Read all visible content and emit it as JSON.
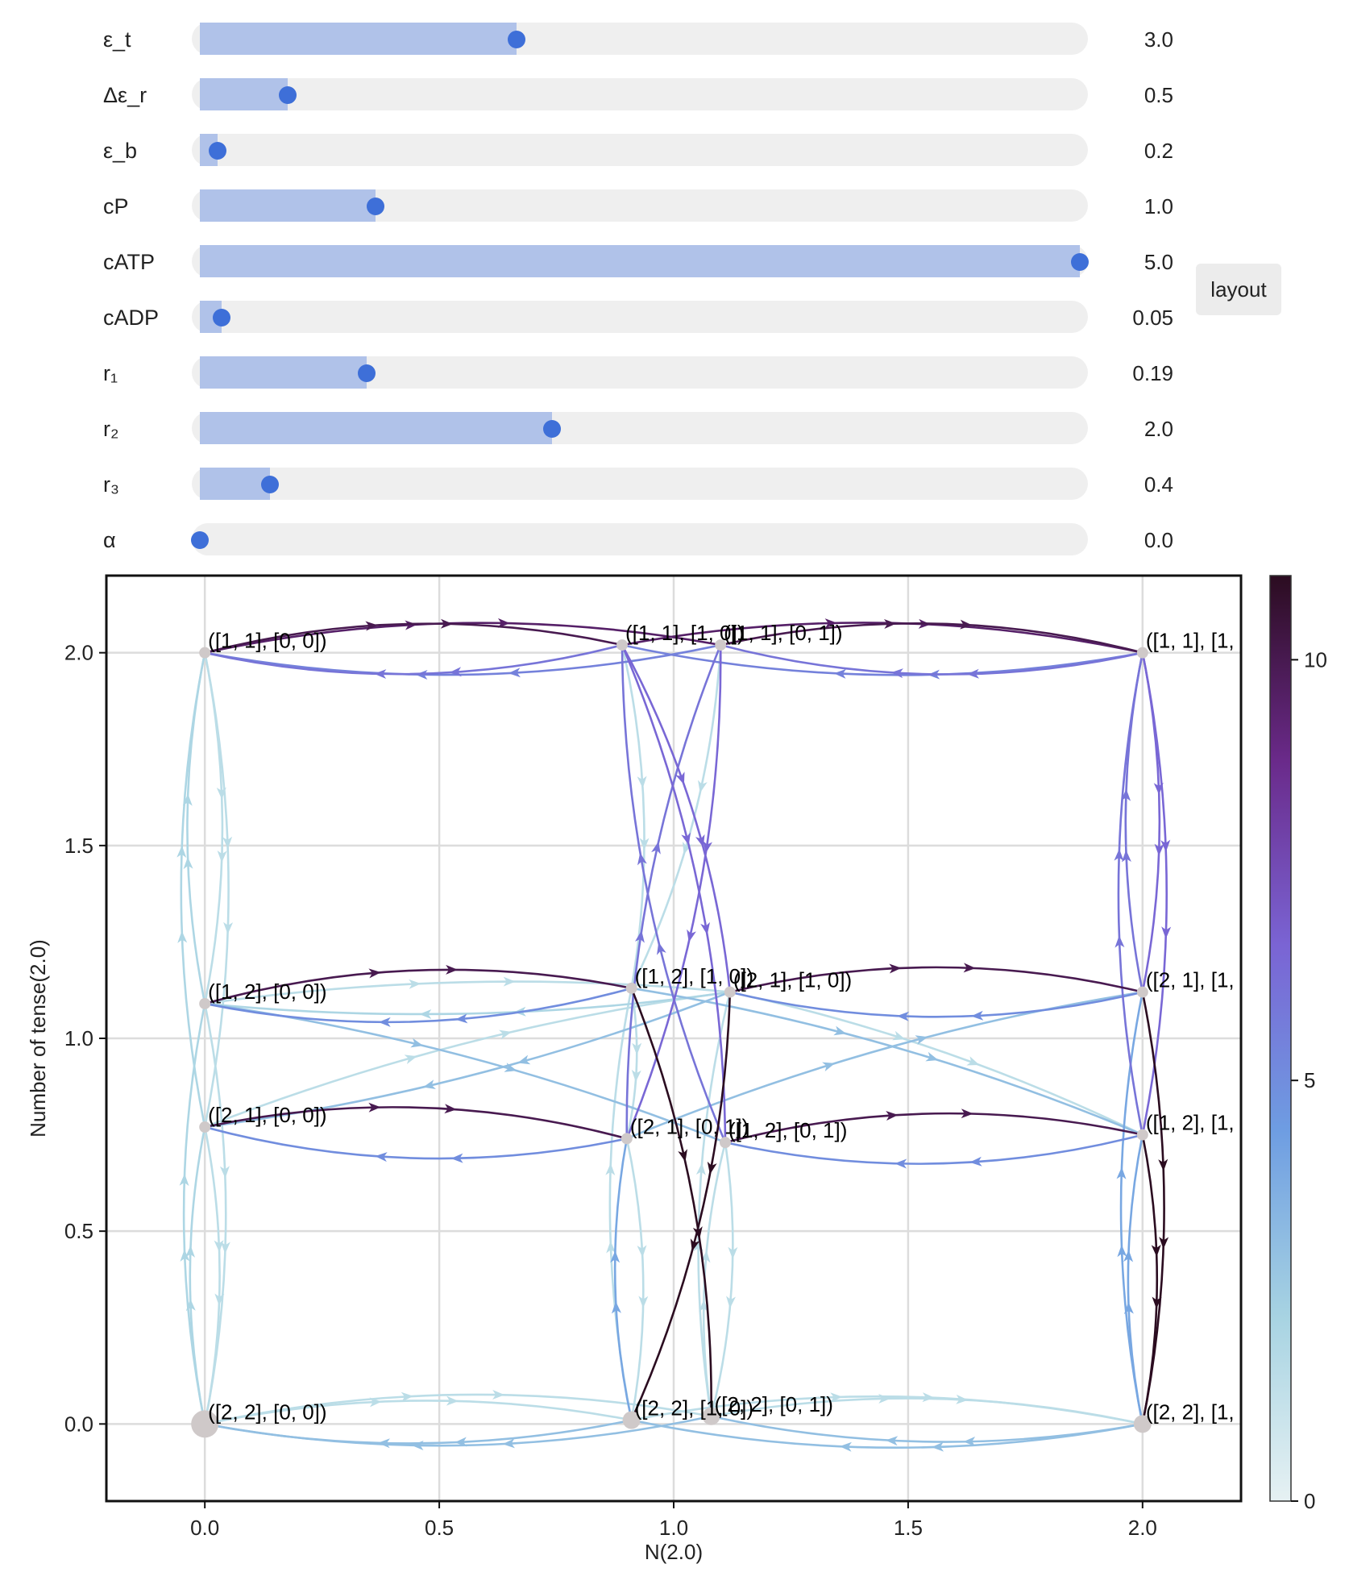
{
  "sliders": [
    {
      "label": "ε_t",
      "value": "3.0",
      "fraction": 0.36
    },
    {
      "label": "Δε_r",
      "value": "0.5",
      "fraction": 0.1
    },
    {
      "label": "ε_b",
      "value": "0.2",
      "fraction": 0.02
    },
    {
      "label": "cP",
      "value": "1.0",
      "fraction": 0.2
    },
    {
      "label": "cATP",
      "value": "5.0",
      "fraction": 1.0
    },
    {
      "label": "cADP",
      "value": "0.05",
      "fraction": 0.025
    },
    {
      "label": "r₁",
      "value": "0.19",
      "fraction": 0.19
    },
    {
      "label": "r₂",
      "value": "2.0",
      "fraction": 0.4
    },
    {
      "label": "r₃",
      "value": "0.4",
      "fraction": 0.08
    },
    {
      "label": "α",
      "value": "0.0",
      "fraction": 0.0
    }
  ],
  "layout_button": "layout",
  "chart_data": {
    "type": "network",
    "xlabel": "N(2.0)",
    "ylabel": "Number of tense(2.0)",
    "xlim": [
      -0.21,
      2.21
    ],
    "ylim": [
      -0.2,
      2.2
    ],
    "xticks": [
      "0.0",
      "0.5",
      "1.0",
      "1.5",
      "2.0"
    ],
    "yticks": [
      "0.0",
      "0.5",
      "1.0",
      "1.5",
      "2.0"
    ],
    "grid": true,
    "colorbar": {
      "min": 0,
      "max": 11,
      "ticks": [
        "0",
        "5",
        "10"
      ],
      "colors": [
        "#e6f1f3",
        "#a7d3e2",
        "#6e9de2",
        "#7a64d4",
        "#6a2a8a",
        "#2b0c20"
      ]
    },
    "nodes": [
      {
        "label": "([1, 1], [0, 0])",
        "x": 0.0,
        "y": 2.0
      },
      {
        "label": "([1, 2], [0, 0])",
        "x": 0.0,
        "y": 1.09
      },
      {
        "label": "([2, 1], [0, 0])",
        "x": 0.0,
        "y": 0.77
      },
      {
        "label": "([2, 2], [0, 0])",
        "x": 0.0,
        "y": 0.0
      },
      {
        "label": "([1, 1], [1, 0])",
        "x": 0.89,
        "y": 2.02
      },
      {
        "label": "([1, 1], [0, 1])",
        "x": 1.1,
        "y": 2.02
      },
      {
        "label": "([1, 2], [1, 0])",
        "x": 0.91,
        "y": 1.13
      },
      {
        "label": "([2, 1], [1, 0])",
        "x": 1.12,
        "y": 1.12
      },
      {
        "label": "([2, 1], [0, 1])",
        "x": 0.9,
        "y": 0.74
      },
      {
        "label": "([1, 2], [0, 1])",
        "x": 1.11,
        "y": 0.73
      },
      {
        "label": "([2, 2], [1, 0])",
        "x": 0.91,
        "y": 0.01
      },
      {
        "label": "([2, 2], [0, 1])",
        "x": 1.08,
        "y": 0.02
      },
      {
        "label": "([1, 1], [1,",
        "x": 2.0,
        "y": 2.0
      },
      {
        "label": "([2, 1], [1,",
        "x": 2.0,
        "y": 1.12
      },
      {
        "label": "([1, 2], [1,",
        "x": 2.0,
        "y": 0.75
      },
      {
        "label": "([2, 2], [1,",
        "x": 2.0,
        "y": 0.0
      }
    ],
    "edges": [
      {
        "source": 0,
        "target": 4,
        "weight": 10,
        "bend": 0.12
      },
      {
        "source": 4,
        "target": 0,
        "weight": 6,
        "bend": 0.12
      },
      {
        "source": 5,
        "target": 12,
        "weight": 10,
        "bend": 0.12
      },
      {
        "source": 12,
        "target": 5,
        "weight": 6,
        "bend": 0.12
      },
      {
        "source": 0,
        "target": 5,
        "weight": 9.5,
        "bend": 0.1
      },
      {
        "source": 5,
        "target": 0,
        "weight": 5.5,
        "bend": 0.1
      },
      {
        "source": 4,
        "target": 12,
        "weight": 9.5,
        "bend": 0.1
      },
      {
        "source": 12,
        "target": 4,
        "weight": 5.5,
        "bend": 0.1
      },
      {
        "source": 1,
        "target": 6,
        "weight": 10,
        "bend": 0.12
      },
      {
        "source": 6,
        "target": 1,
        "weight": 5,
        "bend": 0.12
      },
      {
        "source": 7,
        "target": 13,
        "weight": 10,
        "bend": 0.12
      },
      {
        "source": 13,
        "target": 7,
        "weight": 5,
        "bend": 0.12
      },
      {
        "source": 2,
        "target": 8,
        "weight": 10,
        "bend": 0.12
      },
      {
        "source": 8,
        "target": 2,
        "weight": 5,
        "bend": 0.12
      },
      {
        "source": 9,
        "target": 14,
        "weight": 10,
        "bend": 0.12
      },
      {
        "source": 14,
        "target": 9,
        "weight": 5,
        "bend": 0.12
      },
      {
        "source": 4,
        "target": 9,
        "weight": 6.5,
        "bend": 0.1
      },
      {
        "source": 9,
        "target": 4,
        "weight": 6,
        "bend": 0.1
      },
      {
        "source": 5,
        "target": 8,
        "weight": 6.5,
        "bend": 0.1
      },
      {
        "source": 8,
        "target": 5,
        "weight": 6,
        "bend": 0.1
      },
      {
        "source": 4,
        "target": 7,
        "weight": 6.5,
        "bend": 0.1
      },
      {
        "source": 5,
        "target": 6,
        "weight": 1.5,
        "bend": 0.1
      },
      {
        "source": 6,
        "target": 11,
        "weight": 11,
        "bend": 0.1
      },
      {
        "source": 7,
        "target": 10,
        "weight": 11,
        "bend": 0.1
      },
      {
        "source": 10,
        "target": 8,
        "weight": 4,
        "bend": 0.1
      },
      {
        "source": 11,
        "target": 9,
        "weight": 1.5,
        "bend": 0.1
      },
      {
        "source": 12,
        "target": 13,
        "weight": 6.5,
        "bend": 0.1
      },
      {
        "source": 13,
        "target": 12,
        "weight": 6,
        "bend": 0.1
      },
      {
        "source": 12,
        "target": 14,
        "weight": 6.5,
        "bend": 0.1
      },
      {
        "source": 14,
        "target": 12,
        "weight": 6,
        "bend": 0.1
      },
      {
        "source": 13,
        "target": 15,
        "weight": 11,
        "bend": 0.1
      },
      {
        "source": 14,
        "target": 15,
        "weight": 11,
        "bend": 0.1
      },
      {
        "source": 15,
        "target": 14,
        "weight": 4,
        "bend": 0.1
      },
      {
        "source": 15,
        "target": 13,
        "weight": 4,
        "bend": 0.1
      },
      {
        "source": 0,
        "target": 1,
        "weight": 1.5,
        "bend": 0.1
      },
      {
        "source": 1,
        "target": 0,
        "weight": 2,
        "bend": 0.1
      },
      {
        "source": 0,
        "target": 2,
        "weight": 1.5,
        "bend": 0.1
      },
      {
        "source": 2,
        "target": 0,
        "weight": 2,
        "bend": 0.1
      },
      {
        "source": 1,
        "target": 3,
        "weight": 1.5,
        "bend": 0.1
      },
      {
        "source": 3,
        "target": 1,
        "weight": 2,
        "bend": 0.1
      },
      {
        "source": 2,
        "target": 3,
        "weight": 1.5,
        "bend": 0.1
      },
      {
        "source": 3,
        "target": 2,
        "weight": 2,
        "bend": 0.1
      },
      {
        "source": 3,
        "target": 10,
        "weight": 1.5,
        "bend": 0.1
      },
      {
        "source": 10,
        "target": 3,
        "weight": 3,
        "bend": 0.1
      },
      {
        "source": 3,
        "target": 11,
        "weight": 1.5,
        "bend": 0.1
      },
      {
        "source": 11,
        "target": 3,
        "weight": 3,
        "bend": 0.1
      },
      {
        "source": 10,
        "target": 15,
        "weight": 1.5,
        "bend": 0.1
      },
      {
        "source": 15,
        "target": 10,
        "weight": 3,
        "bend": 0.1
      },
      {
        "source": 11,
        "target": 15,
        "weight": 1.5,
        "bend": 0.1
      },
      {
        "source": 15,
        "target": 11,
        "weight": 3,
        "bend": 0.1
      },
      {
        "source": 1,
        "target": 7,
        "weight": 1.5,
        "bend": 0.06
      },
      {
        "source": 7,
        "target": 1,
        "weight": 2,
        "bend": 0.06
      },
      {
        "source": 2,
        "target": 7,
        "weight": 1.5,
        "bend": 0.06
      },
      {
        "source": 7,
        "target": 2,
        "weight": 3,
        "bend": 0.06
      },
      {
        "source": 1,
        "target": 9,
        "weight": 3,
        "bend": 0.06
      },
      {
        "source": 6,
        "target": 14,
        "weight": 3,
        "bend": 0.06
      },
      {
        "source": 8,
        "target": 13,
        "weight": 3,
        "bend": 0.06
      },
      {
        "source": 7,
        "target": 14,
        "weight": 1.5,
        "bend": 0.06
      },
      {
        "source": 6,
        "target": 8,
        "weight": 1.5,
        "bend": 0.1
      },
      {
        "source": 8,
        "target": 10,
        "weight": 1.5,
        "bend": 0.1
      },
      {
        "source": 9,
        "target": 11,
        "weight": 1.5,
        "bend": 0.1
      },
      {
        "source": 10,
        "target": 6,
        "weight": 1.5,
        "bend": 0.1
      },
      {
        "source": 11,
        "target": 7,
        "weight": 1.5,
        "bend": 0.1
      },
      {
        "source": 4,
        "target": 6,
        "weight": 1.5,
        "bend": 0.1
      }
    ]
  }
}
